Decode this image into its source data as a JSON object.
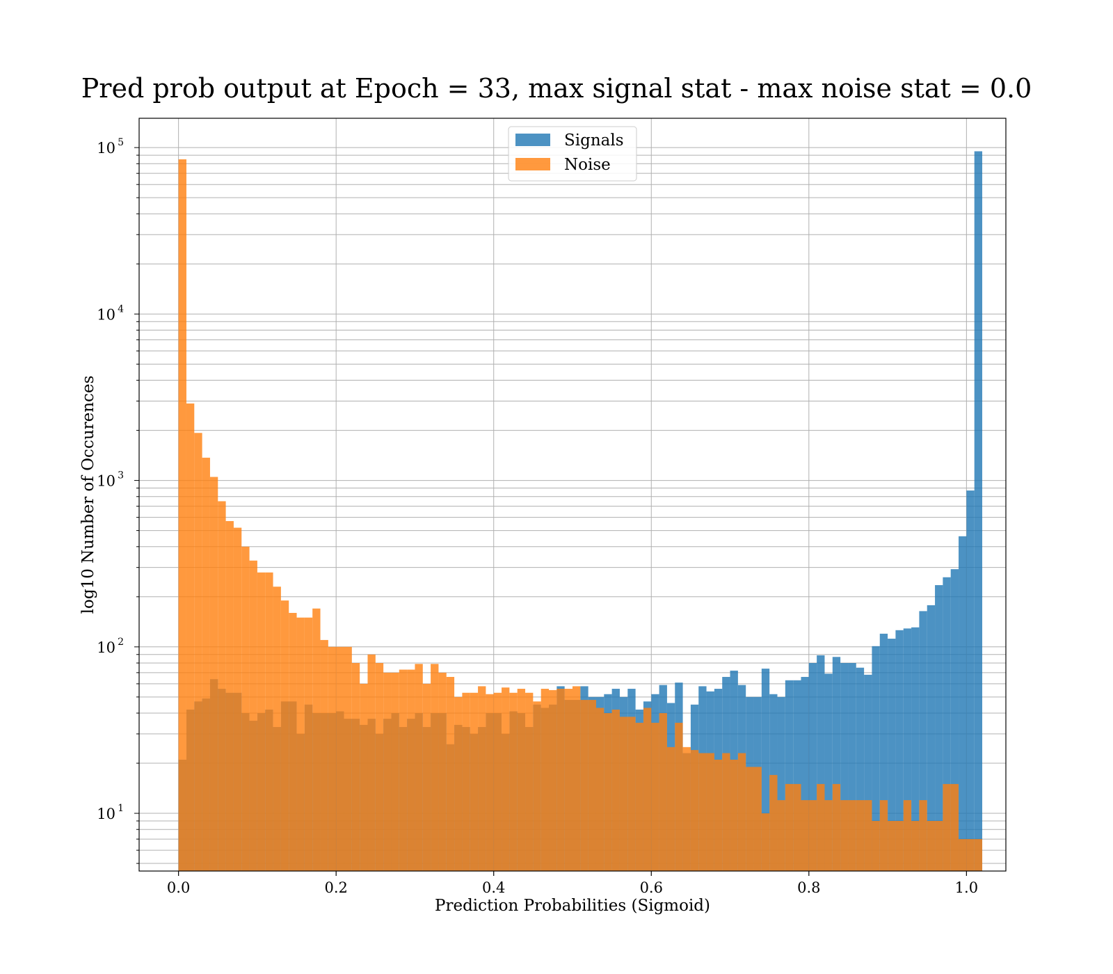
{
  "chart_data": {
    "type": "bar",
    "title": "Pred prob output at Epoch = 33, max signal stat - max noise stat = 0.0",
    "xlabel": "Prediction Probabilities (Sigmoid)",
    "ylabel": "log10 Number of Occurences",
    "x_ticks": [
      "0.0",
      "0.2",
      "0.4",
      "0.6",
      "0.8",
      "1.0"
    ],
    "y_ticks": [
      {
        "base": "10",
        "exp": "1",
        "value": 10
      },
      {
        "base": "10",
        "exp": "2",
        "value": 100
      },
      {
        "base": "10",
        "exp": "3",
        "value": 1000
      },
      {
        "base": "10",
        "exp": "4",
        "value": 10000
      },
      {
        "base": "10",
        "exp": "5",
        "value": 100000
      }
    ],
    "xlim": [
      -0.05,
      1.05
    ],
    "ylim": [
      4.5,
      150000
    ],
    "yscale": "log",
    "grid": true,
    "legend_position": "top-center",
    "bin_start": 0.0,
    "bin_width": 0.01,
    "series": [
      {
        "name": "Signals",
        "color": "#1f77b4",
        "values": [
          21,
          42,
          47,
          49,
          64,
          56,
          53,
          53,
          40,
          36,
          40,
          42,
          33,
          47,
          47,
          30,
          45,
          40,
          40,
          40,
          41,
          37,
          37,
          34,
          37,
          30,
          37,
          40,
          33,
          37,
          40,
          33,
          40,
          40,
          26,
          34,
          33,
          30,
          33,
          40,
          40,
          30,
          41,
          40,
          33,
          45,
          43,
          45,
          58,
          48,
          48,
          58,
          50,
          50,
          52,
          56,
          50,
          56,
          42,
          47,
          52,
          59,
          46,
          61,
          23,
          45,
          58,
          54,
          56,
          66,
          72,
          59,
          50,
          50,
          74,
          52,
          50,
          63,
          63,
          66,
          80,
          89,
          69,
          87,
          80,
          80,
          75,
          68,
          101,
          120,
          112,
          126,
          129,
          131,
          164,
          178,
          235,
          262,
          293,
          462,
          870,
          95000
        ]
      },
      {
        "name": "Noise",
        "color": "#ff7f0e",
        "values": [
          85000,
          2900,
          1930,
          1370,
          1050,
          750,
          570,
          520,
          400,
          330,
          280,
          280,
          230,
          190,
          160,
          150,
          150,
          170,
          110,
          100,
          100,
          100,
          80,
          60,
          90,
          80,
          70,
          70,
          73,
          73,
          79,
          60,
          79,
          70,
          66,
          50,
          53,
          53,
          58,
          52,
          53,
          57,
          53,
          56,
          53,
          47,
          56,
          55,
          56,
          56,
          58,
          48,
          48,
          43,
          40,
          42,
          38,
          38,
          35,
          43,
          35,
          40,
          25,
          35,
          25,
          24,
          23,
          23,
          21,
          23,
          21,
          23,
          19,
          19,
          10,
          17,
          12,
          15,
          15,
          12,
          12,
          15,
          12,
          15,
          12,
          12,
          12,
          12,
          9,
          12,
          9,
          9,
          12,
          9,
          12,
          9,
          9,
          15,
          15,
          7,
          7,
          7
        ]
      }
    ]
  }
}
